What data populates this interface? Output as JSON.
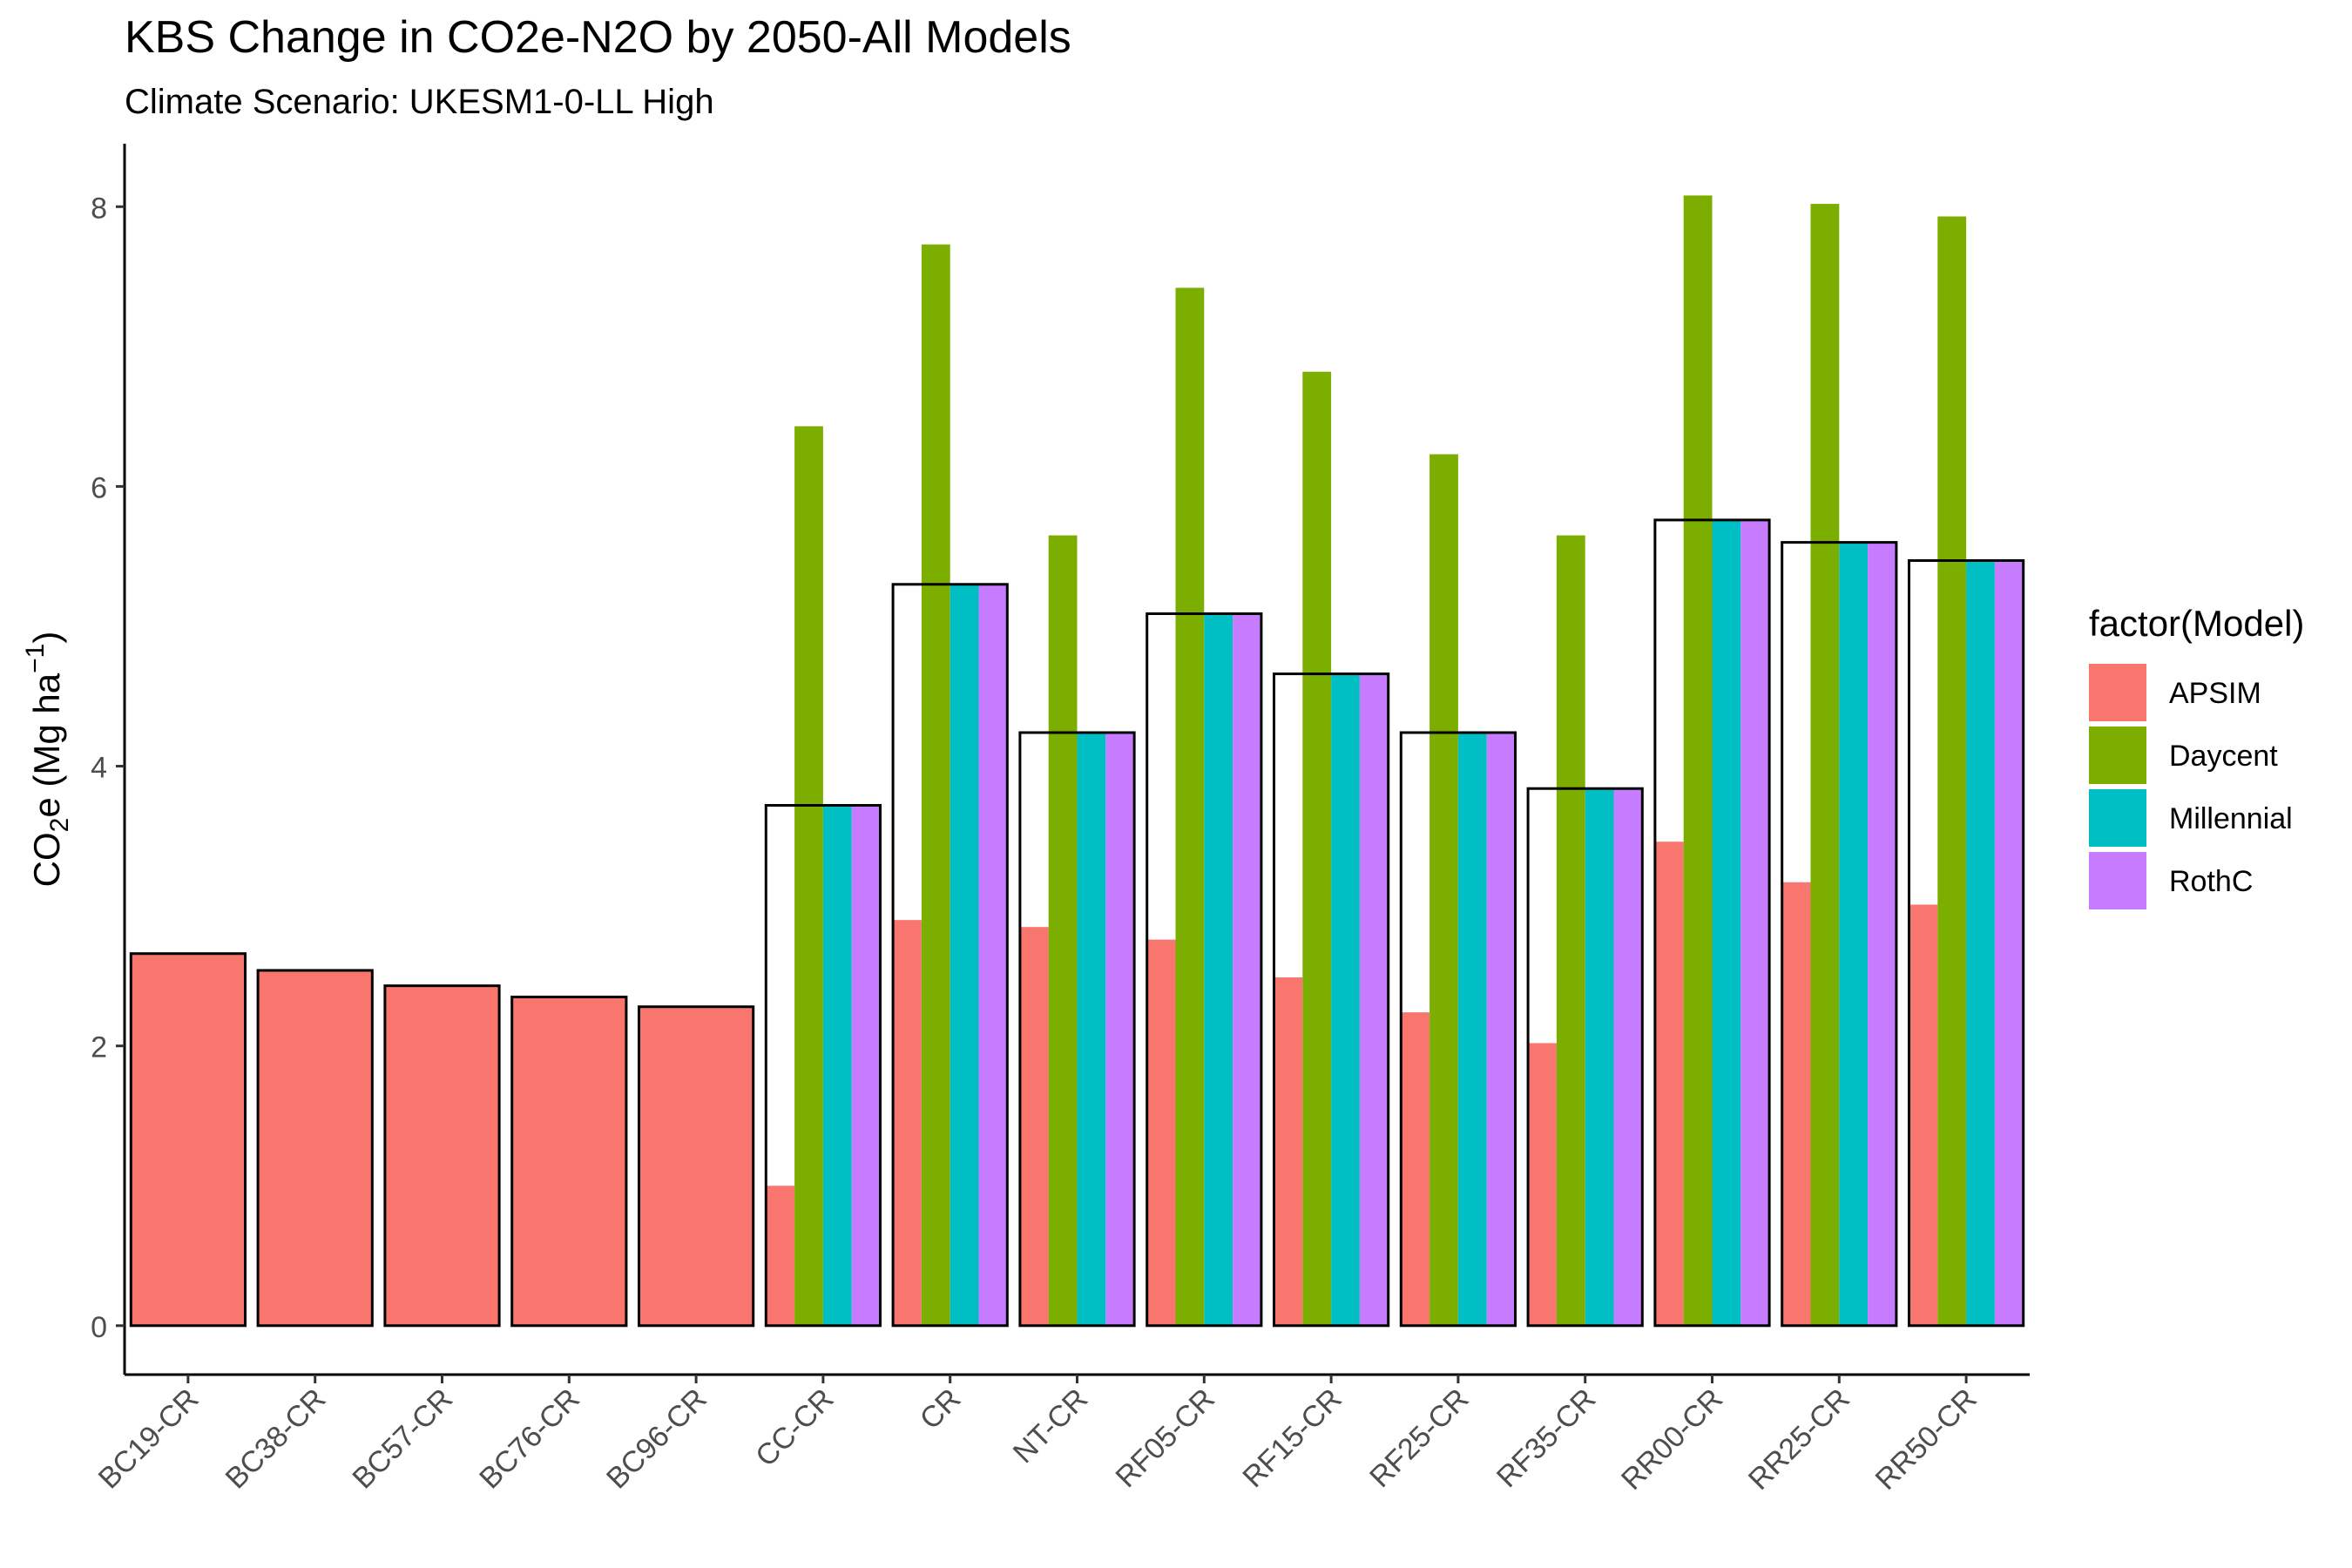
{
  "chart_data": {
    "type": "bar",
    "title": "KBS Change in CO2e-N2O by 2050-All Models",
    "subtitle": "Climate Scenario: UKESM1-0-LL High",
    "ylabel": {
      "main": "CO",
      "sub": "2",
      "rest": "e (Mg ha",
      "sup": "−1",
      "close": ")"
    },
    "ylim": [
      -0.35,
      8.45
    ],
    "yticks": [
      "0",
      "2",
      "4",
      "6",
      "8"
    ],
    "categories": [
      "BC19-CR",
      "BC38-CR",
      "BC57-CR",
      "BC76-CR",
      "BC96-CR",
      "CC-CR",
      "CR",
      "NT-CR",
      "RF05-CR",
      "RF15-CR",
      "RF25-CR",
      "RF35-CR",
      "RR00-CR",
      "RR25-CR",
      "RR50-CR"
    ],
    "legend": {
      "title": "factor(Model)",
      "position": "right"
    },
    "series": [
      {
        "name": "APSIM",
        "color": "#F8766D",
        "values": [
          2.66,
          2.54,
          2.43,
          2.35,
          2.28,
          1.0,
          2.9,
          2.85,
          2.76,
          2.49,
          2.24,
          2.02,
          3.46,
          3.17,
          3.01
        ]
      },
      {
        "name": "Daycent",
        "color": "#7CAE00",
        "values": [
          null,
          null,
          null,
          null,
          null,
          6.43,
          7.73,
          5.65,
          7.42,
          6.82,
          6.23,
          5.65,
          8.08,
          8.02,
          7.93
        ]
      },
      {
        "name": "Millennial",
        "color": "#00BFC4",
        "values": [
          null,
          null,
          null,
          null,
          null,
          3.72,
          5.3,
          4.24,
          5.09,
          4.66,
          4.24,
          3.84,
          5.76,
          5.6,
          5.47
        ]
      },
      {
        "name": "RothC",
        "color": "#C77CFF",
        "values": [
          null,
          null,
          null,
          null,
          null,
          3.72,
          5.3,
          4.24,
          5.09,
          4.66,
          4.24,
          3.84,
          5.76,
          5.6,
          5.47
        ]
      }
    ],
    "mean_outline": {
      "values": [
        2.66,
        2.54,
        2.43,
        2.35,
        2.28,
        3.72,
        5.3,
        4.24,
        5.09,
        4.66,
        4.24,
        3.84,
        5.76,
        5.6,
        5.47
      ],
      "stroke": "#000000"
    },
    "grid": false
  }
}
